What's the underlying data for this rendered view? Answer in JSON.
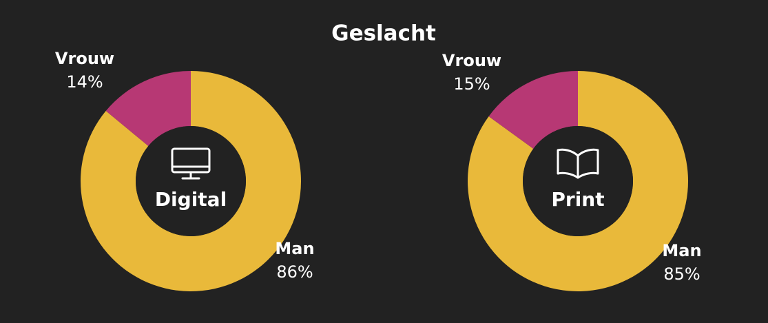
{
  "title": "Geslacht",
  "chart_data": [
    {
      "type": "pie",
      "center_label": "Digital",
      "categories": [
        "Man",
        "Vrouw"
      ],
      "values": [
        86,
        14
      ],
      "value_labels": [
        "86%",
        "14%"
      ],
      "colors": [
        "#e9b93a",
        "#b73874"
      ]
    },
    {
      "type": "pie",
      "center_label": "Print",
      "categories": [
        "Man",
        "Vrouw"
      ],
      "values": [
        85,
        15
      ],
      "value_labels": [
        "85%",
        "15%"
      ],
      "colors": [
        "#e9b93a",
        "#b73874"
      ]
    }
  ]
}
